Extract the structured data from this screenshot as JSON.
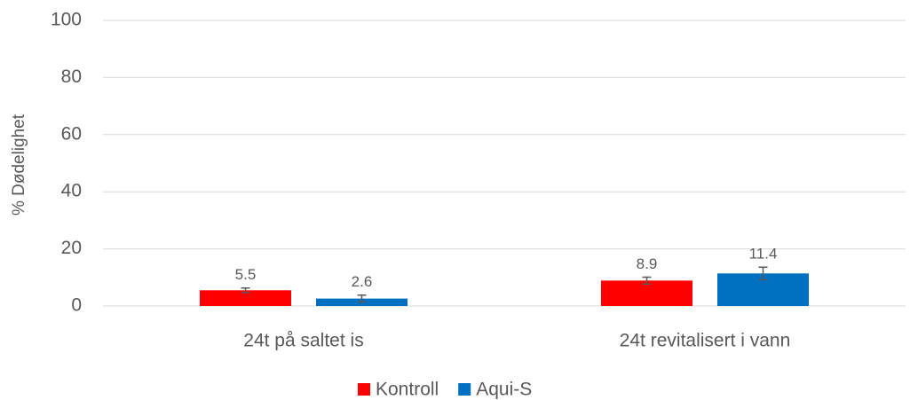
{
  "chart_data": {
    "type": "bar",
    "y_label": "% Dødelighet",
    "categories": [
      "24t på saltet is",
      "24t revitalisert i vann"
    ],
    "series": [
      {
        "name": "Kontroll",
        "color": "#ff0000",
        "values": [
          5.5,
          8.9
        ],
        "errors": [
          0.8,
          1.2
        ]
      },
      {
        "name": "Aqui-S",
        "color": "#0070c0",
        "values": [
          2.6,
          11.4
        ],
        "errors": [
          1.2,
          2.2
        ]
      }
    ],
    "ylim": [
      0,
      100
    ],
    "yticks": [
      0,
      20,
      40,
      60,
      80,
      100
    ],
    "grid": true,
    "legend": "bottom"
  }
}
